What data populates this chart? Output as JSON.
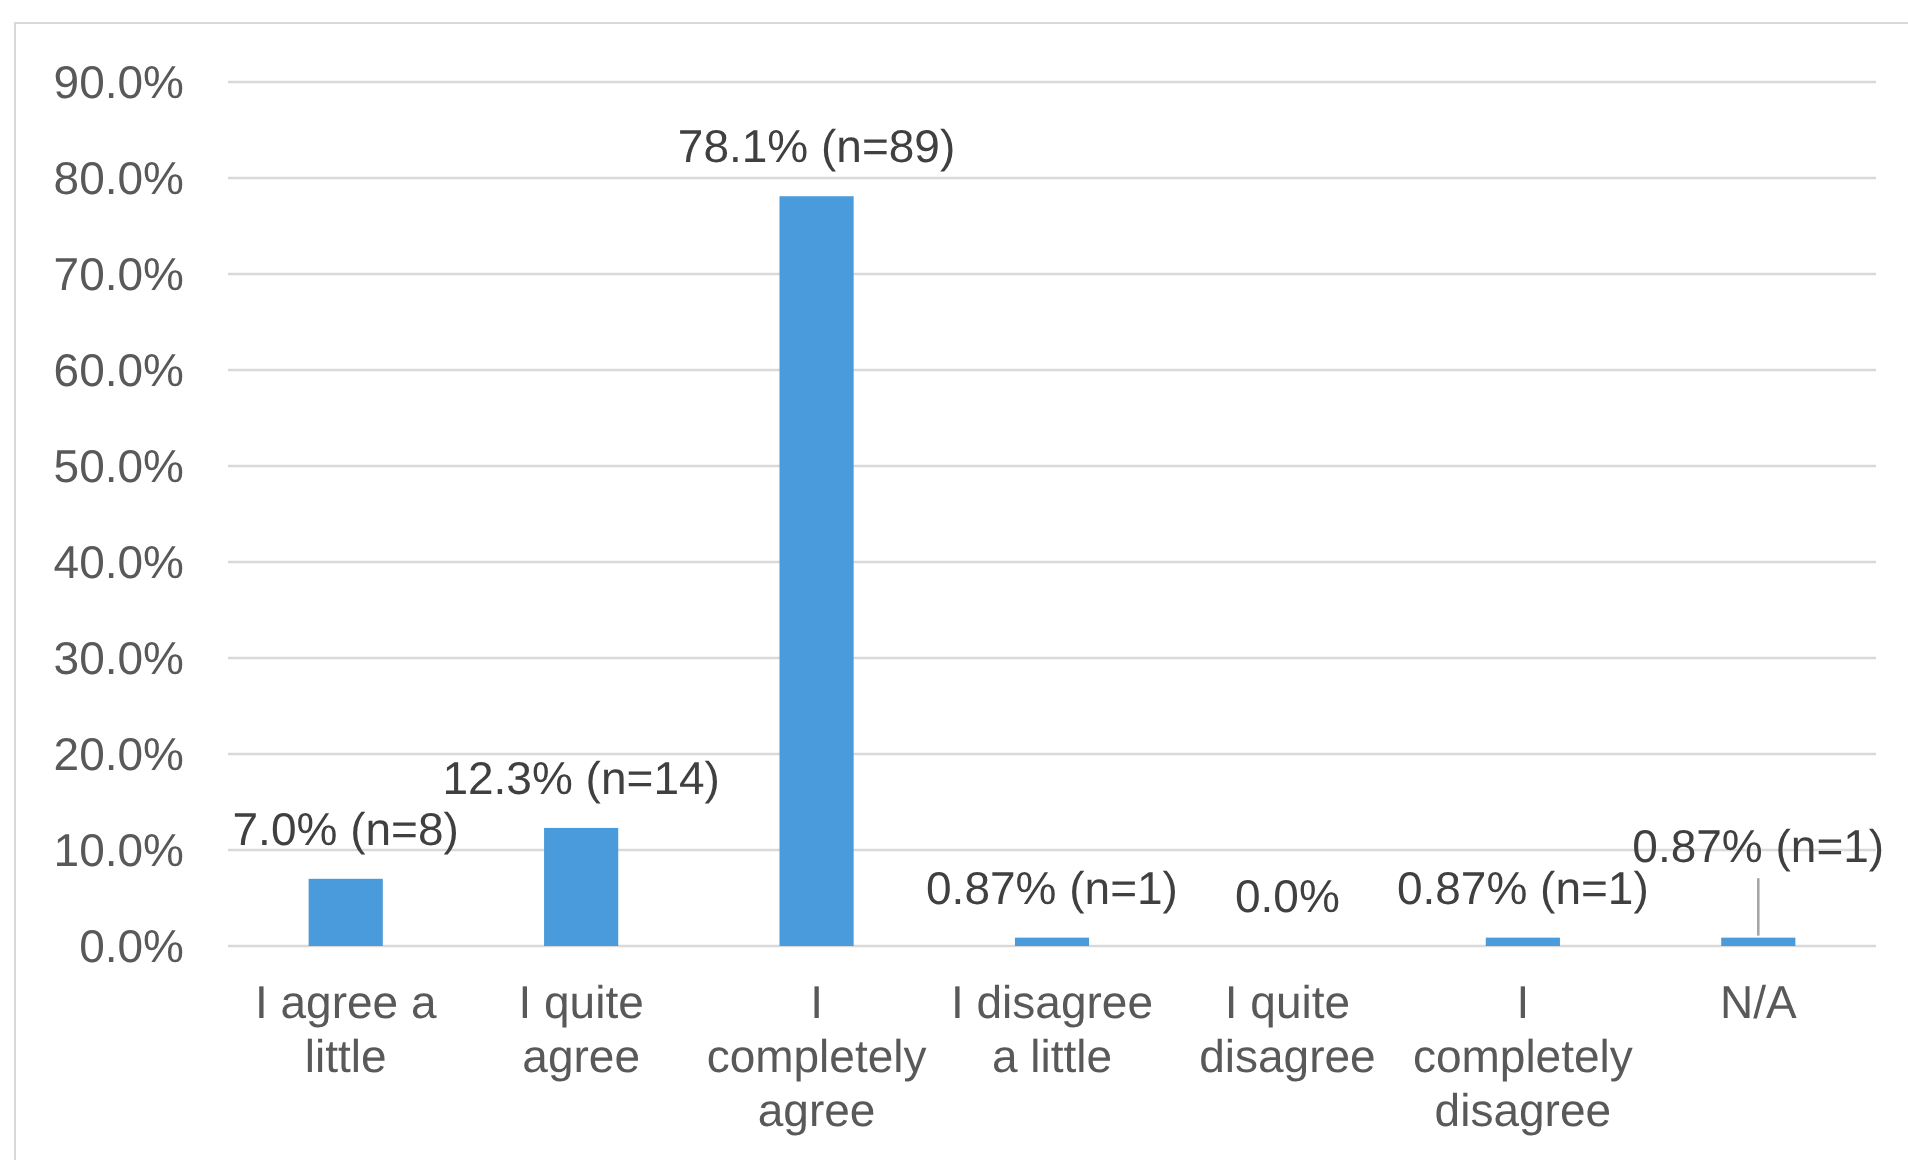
{
  "chart_data": {
    "type": "bar",
    "categories": [
      "I agree a little",
      "I quite agree",
      "I completely agree",
      "I disagree a little",
      "I quite disagree",
      "I completely disagree",
      "N/A"
    ],
    "values": [
      7.0,
      12.3,
      78.1,
      0.87,
      0.0,
      0.87,
      0.87
    ],
    "color": "#4a9bdb",
    "value_labels": [
      "7.0% (n=8)",
      "12.3% (n=14)",
      "78.1% (n=89)",
      "0.87% (n=1)",
      "0.0%",
      "0.87% (n=1)",
      "0.87% (n=1)"
    ],
    "ylim": [
      0,
      90
    ],
    "yticks": [
      {
        "value": 0,
        "label": "0.0%"
      },
      {
        "value": 10,
        "label": "10.0%"
      },
      {
        "value": 20,
        "label": "20.0%"
      },
      {
        "value": 30,
        "label": "30.0%"
      },
      {
        "value": 40,
        "label": "40.0%"
      },
      {
        "value": 50,
        "label": "50.0%"
      },
      {
        "value": 60,
        "label": "60.0%"
      },
      {
        "value": 70,
        "label": "70.0%"
      },
      {
        "value": 80,
        "label": "80.0%"
      },
      {
        "value": 90,
        "label": "90.0%"
      }
    ],
    "grid": "y"
  }
}
